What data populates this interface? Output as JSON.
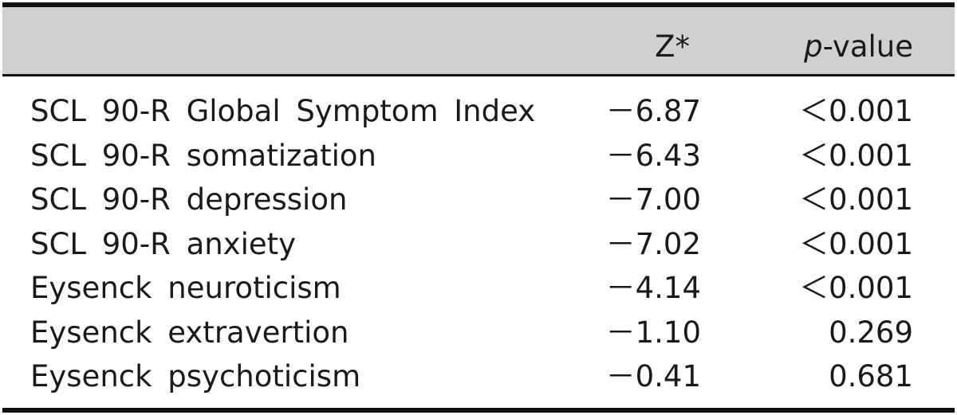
{
  "table": {
    "header": {
      "z_label": "Z*",
      "p_label_italic": "p",
      "p_label_rest": "-value"
    },
    "rows": [
      {
        "label": "SCL 90-R Global Symptom Index",
        "z": "－6.87",
        "p": "＜0.001"
      },
      {
        "label": "SCL 90-R somatization",
        "z": "－6.43",
        "p": "＜0.001"
      },
      {
        "label": "SCL 90-R depression",
        "z": "－7.00",
        "p": "＜0.001"
      },
      {
        "label": "SCL 90-R anxiety",
        "z": "－7.02",
        "p": "＜0.001"
      },
      {
        "label": "Eysenck neuroticism",
        "z": "－4.14",
        "p": "＜0.001"
      },
      {
        "label": "Eysenck extravertion",
        "z": "－1.10",
        "p": "0.269"
      },
      {
        "label": "Eysenck psychoticism",
        "z": "－0.41",
        "p": "0.681"
      }
    ]
  }
}
